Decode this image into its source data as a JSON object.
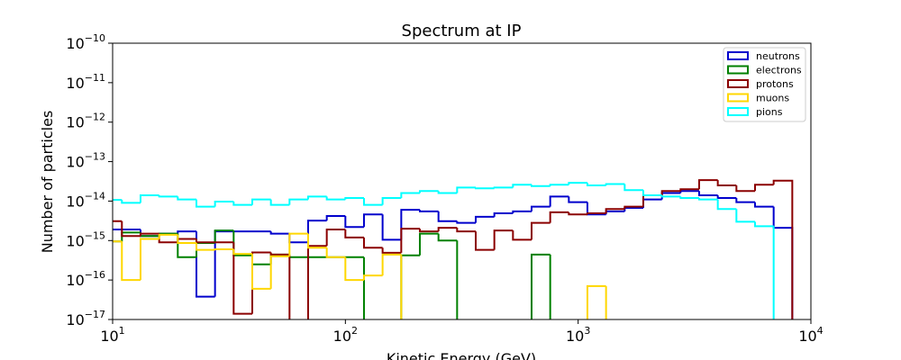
{
  "chart_data": {
    "type": "histogram",
    "title": "Spectrum at IP",
    "x_label": "Kinetic Energy (GeV)",
    "y_label": "Number of particles",
    "x_scale": "log",
    "y_scale": "log",
    "legend": "upper right",
    "xlim": [
      10,
      10000
    ],
    "xticks": [
      {
        "value": 10,
        "label": "10",
        "exponent": "1"
      },
      {
        "value": 100,
        "label": "10",
        "exponent": "2"
      },
      {
        "value": 1000,
        "label": "10",
        "exponent": "3"
      },
      {
        "value": 10000,
        "label": "10",
        "exponent": "4"
      }
    ],
    "ylim": [
      1e-17,
      1e-10
    ],
    "yticks": [
      {
        "value": 1e-17,
        "label": "10",
        "exponent": "−17"
      },
      {
        "value": 1e-16,
        "label": "10",
        "exponent": "−16"
      },
      {
        "value": 1e-15,
        "label": "10",
        "exponent": "−15"
      },
      {
        "value": 1e-14,
        "label": "10",
        "exponent": "−14"
      },
      {
        "value": 1e-13,
        "label": "10",
        "exponent": "−13"
      },
      {
        "value": 1e-12,
        "label": "10",
        "exponent": "−12"
      },
      {
        "value": 1e-11,
        "label": "10",
        "exponent": "−11"
      },
      {
        "value": 1e-10,
        "label": "10",
        "exponent": "−10"
      }
    ],
    "bins": [
      9.12,
      10.96,
      13.18,
      15.85,
      19.05,
      22.91,
      27.54,
      33.11,
      39.81,
      47.86,
      57.54,
      69.18,
      83.18,
      100,
      120.2,
      144.5,
      173.8,
      208.9,
      251.2,
      302,
      363.1,
      436.5,
      524.8,
      631,
      758.6,
      912,
      1096,
      1318,
      1585,
      1905,
      2291,
      2754,
      3311,
      3981,
      4786,
      5754,
      6918,
      8318
    ],
    "series": [
      {
        "name": "neutrons",
        "color": "#0000cc",
        "values": [
          1.9e-15,
          1.9e-15,
          1.3e-15,
          1.5e-15,
          1.7e-15,
          3.8e-17,
          1.7e-15,
          1.7e-15,
          1.7e-15,
          1.5e-15,
          9e-16,
          3.2e-15,
          4.2e-15,
          2.2e-15,
          4.6e-15,
          1.05e-15,
          6e-15,
          5.5e-15,
          3.1e-15,
          2.8e-15,
          4e-15,
          4.9e-15,
          5.5e-15,
          7.2e-15,
          1.3e-14,
          9.4e-15,
          4.6e-15,
          5.5e-15,
          6.7e-15,
          1.1e-14,
          1.6e-14,
          1.8e-14,
          1.4e-14,
          1.2e-14,
          9.4e-15,
          7.2e-15,
          2.1e-15
        ]
      },
      {
        "name": "electrons",
        "color": "#008000",
        "values": [
          9.5e-16,
          1.6e-15,
          1.3e-15,
          1.5e-15,
          3.8e-16,
          8.7e-16,
          1.8e-15,
          4.2e-16,
          2.5e-16,
          4.4e-16,
          3.8e-16,
          3.8e-16,
          3.8e-16,
          3.8e-16,
          0,
          0,
          4.2e-16,
          1.5e-15,
          1e-15,
          0,
          0,
          0,
          0,
          4.4e-16,
          0,
          0,
          0,
          0,
          0,
          0,
          0,
          0,
          0,
          0,
          0,
          0,
          0
        ]
      },
      {
        "name": "protons",
        "color": "#8b0000",
        "values": [
          3.1e-15,
          1.3e-15,
          1.5e-15,
          9e-16,
          1.1e-15,
          9e-16,
          9e-16,
          1.4e-17,
          5e-16,
          4.4e-16,
          0,
          7.3e-16,
          1.9e-15,
          1.2e-15,
          6.6e-16,
          4.9e-16,
          2e-15,
          1.7e-15,
          2.1e-15,
          1.7e-15,
          5.8e-16,
          1.8e-15,
          1.05e-15,
          2.8e-15,
          5.2e-15,
          4.6e-15,
          4.9e-15,
          6.3e-15,
          7.2e-15,
          1.4e-14,
          1.8e-14,
          2e-14,
          3.4e-14,
          2.5e-14,
          1.8e-14,
          2.6e-14,
          3.3e-14
        ]
      },
      {
        "name": "muons",
        "color": "#ffd700",
        "values": [
          9.5e-16,
          1e-16,
          1.1e-15,
          1.4e-15,
          8.7e-16,
          5.8e-16,
          6e-16,
          4.6e-16,
          6e-17,
          4e-16,
          1.5e-15,
          6.6e-16,
          3.8e-16,
          1e-16,
          1.3e-16,
          4.4e-16,
          0,
          0,
          0,
          0,
          0,
          0,
          0,
          0,
          0,
          0,
          7e-17,
          0,
          0,
          0,
          0,
          0,
          0,
          0,
          0,
          0,
          0
        ]
      },
      {
        "name": "pions",
        "color": "#00ffff",
        "values": [
          1.07e-14,
          9e-15,
          1.4e-14,
          1.3e-14,
          1.1e-14,
          7.2e-15,
          9.7e-15,
          8e-15,
          1.1e-14,
          8e-15,
          1.1e-14,
          1.3e-14,
          1.1e-14,
          1.2e-14,
          8e-15,
          1.2e-14,
          1.6e-14,
          1.8e-14,
          1.6e-14,
          2.2e-14,
          2.1e-14,
          2.2e-14,
          2.6e-14,
          2.4e-14,
          2.6e-14,
          2.9e-14,
          2.5e-14,
          2.7e-14,
          1.9e-14,
          1.4e-14,
          1.3e-14,
          1.2e-14,
          1.1e-14,
          6.3e-15,
          3e-15,
          2.3e-15,
          0
        ]
      }
    ]
  }
}
